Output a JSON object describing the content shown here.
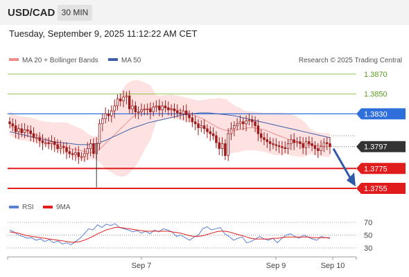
{
  "header": {
    "symbol": "USD/CAD",
    "timeframe": "30 MIN",
    "datetime": "Tuesday, September 9, 2025 11:12:22 AM CET"
  },
  "legend": {
    "ma20": "MA 20 + Bollinger Bands",
    "ma50": "MA 50",
    "credit": "Research © 2025 Trading Central",
    "rsi": "RSI",
    "rsi_ma": "9MA"
  },
  "colors": {
    "ma20": "#f08c8c",
    "ma50": "#3d5ea8",
    "bands": "#fdd8d8",
    "candle": "#9b1c1c",
    "support": "#e01c1c",
    "resistance_line": "#8fc24a",
    "resistance_text": "#5a9a1e",
    "pivot": "#2e6fdb",
    "arrow": "#2e5aa8",
    "current": "#333333"
  },
  "chart_data": [
    {
      "type": "candlestick",
      "price_range": [
        1.374,
        1.388
      ],
      "levels": [
        {
          "label": "1.3870",
          "value": 1.387,
          "kind": "resistance"
        },
        {
          "label": "1.3850",
          "value": 1.385,
          "kind": "resistance"
        },
        {
          "label": "1.3830",
          "value": 1.383,
          "kind": "pivot"
        },
        {
          "label": "1.3797",
          "value": 1.3797,
          "kind": "current"
        },
        {
          "label": "1.3775",
          "value": 1.3775,
          "kind": "support"
        },
        {
          "label": "1.3755",
          "value": 1.3755,
          "kind": "support"
        }
      ],
      "x_ticks": [
        "Sep 7",
        "Sep 9",
        "Sep 10"
      ],
      "close": [
        1.382,
        1.3818,
        1.3812,
        1.3815,
        1.3811,
        1.3814,
        1.3813,
        1.381,
        1.3806,
        1.3806,
        1.3803,
        1.3801,
        1.3801,
        1.38,
        1.3802,
        1.3799,
        1.3795,
        1.3797,
        1.3796,
        1.3792,
        1.379,
        1.3789,
        1.3791,
        1.3787,
        1.3787,
        1.379,
        1.3795,
        1.38,
        1.379,
        1.38,
        1.382,
        1.3825,
        1.383,
        1.3828,
        1.3833,
        1.3838,
        1.3845,
        1.3843,
        1.3847,
        1.3848,
        1.3835,
        1.3838,
        1.3832,
        1.3832,
        1.3834,
        1.3835,
        1.3835,
        1.3832,
        1.3837,
        1.3838,
        1.3834,
        1.3838,
        1.3836,
        1.3834,
        1.3835,
        1.3833,
        1.3831,
        1.383,
        1.3833,
        1.3829,
        1.3826,
        1.3822,
        1.382,
        1.3816,
        1.3818,
        1.3815,
        1.3812,
        1.381,
        1.3808,
        1.3801,
        1.3795,
        1.38,
        1.3788,
        1.381,
        1.3815,
        1.3818,
        1.382,
        1.3822,
        1.382,
        1.3823,
        1.3824,
        1.3822,
        1.3818,
        1.381,
        1.3806,
        1.3804,
        1.3802,
        1.38,
        1.3799,
        1.3798,
        1.3797,
        1.3796,
        1.3795,
        1.38,
        1.3804,
        1.3801,
        1.3802,
        1.38,
        1.3796,
        1.3802,
        1.38,
        1.3798,
        1.3795,
        1.3793,
        1.3797,
        1.3801,
        1.38,
        1.3797
      ],
      "ma20": [
        1.3818,
        1.3816,
        1.3815,
        1.3813,
        1.3811,
        1.3809,
        1.3807,
        1.3805,
        1.3803,
        1.3801,
        1.3799,
        1.3797,
        1.3795,
        1.3794,
        1.3793,
        1.3792,
        1.3791,
        1.3792,
        1.3796,
        1.3801,
        1.3806,
        1.3811,
        1.3816,
        1.3821,
        1.3826,
        1.383,
        1.3833,
        1.3835,
        1.3836,
        1.3837,
        1.3837,
        1.3836,
        1.3835,
        1.3834,
        1.3833,
        1.3831,
        1.3829,
        1.3827,
        1.3825,
        1.3822,
        1.3819,
        1.3816,
        1.3814,
        1.3813,
        1.3813,
        1.3814,
        1.3815,
        1.3816,
        1.3816,
        1.3815,
        1.3814,
        1.3812,
        1.381,
        1.3808,
        1.3806,
        1.3804,
        1.3802,
        1.3801,
        1.38,
        1.3799,
        1.3798,
        1.3798,
        1.3797,
        1.3797
      ],
      "ma20_at": "candle_index_scaled",
      "ma50": [
        1.3812,
        1.381,
        1.3808,
        1.3806,
        1.3804,
        1.3802,
        1.3801,
        1.38,
        1.3799,
        1.3799,
        1.38,
        1.3803,
        1.3807,
        1.3811,
        1.3815,
        1.3818,
        1.3821,
        1.3823,
        1.3825,
        1.3827,
        1.3829,
        1.383,
        1.3831,
        1.3831,
        1.383,
        1.3829,
        1.3828,
        1.3826,
        1.3824,
        1.3822,
        1.382,
        1.3818,
        1.3816,
        1.3814,
        1.3812,
        1.381,
        1.3808,
        1.3806
      ]
    },
    {
      "type": "line",
      "name": "RSI",
      "y_ticks": [
        70,
        50,
        30
      ],
      "ylim": [
        25,
        75
      ],
      "rsi": [
        58,
        55,
        50,
        48,
        45,
        46,
        42,
        44,
        40,
        43,
        38,
        41,
        36,
        38,
        35,
        40,
        45,
        52,
        60,
        58,
        66,
        62,
        67,
        65,
        68,
        62,
        60,
        58,
        55,
        57,
        53,
        56,
        52,
        58,
        55,
        60,
        58,
        55,
        48,
        50,
        46,
        42,
        47,
        50,
        60,
        63,
        58,
        60,
        62,
        52,
        48,
        42,
        45,
        47,
        38,
        40,
        44,
        48,
        44,
        42,
        45,
        38,
        45,
        50,
        52,
        48,
        45,
        50,
        47,
        44,
        42,
        48,
        46,
        45
      ],
      "ma9": [
        55,
        54,
        53,
        51,
        49,
        48,
        47,
        46,
        45,
        44,
        43,
        42,
        41,
        40,
        39,
        39,
        40,
        42,
        45,
        48,
        52,
        55,
        58,
        60,
        62,
        62,
        61,
        60,
        59,
        58,
        57,
        56,
        56,
        56,
        56,
        56,
        56,
        55,
        54,
        53,
        51,
        49,
        48,
        48,
        49,
        51,
        53,
        55,
        56,
        56,
        55,
        53,
        51,
        49,
        47,
        45,
        44,
        44,
        44,
        44,
        45,
        45,
        46,
        47,
        47,
        47,
        47,
        47,
        47,
        46,
        46,
        46,
        46,
        46
      ]
    }
  ]
}
